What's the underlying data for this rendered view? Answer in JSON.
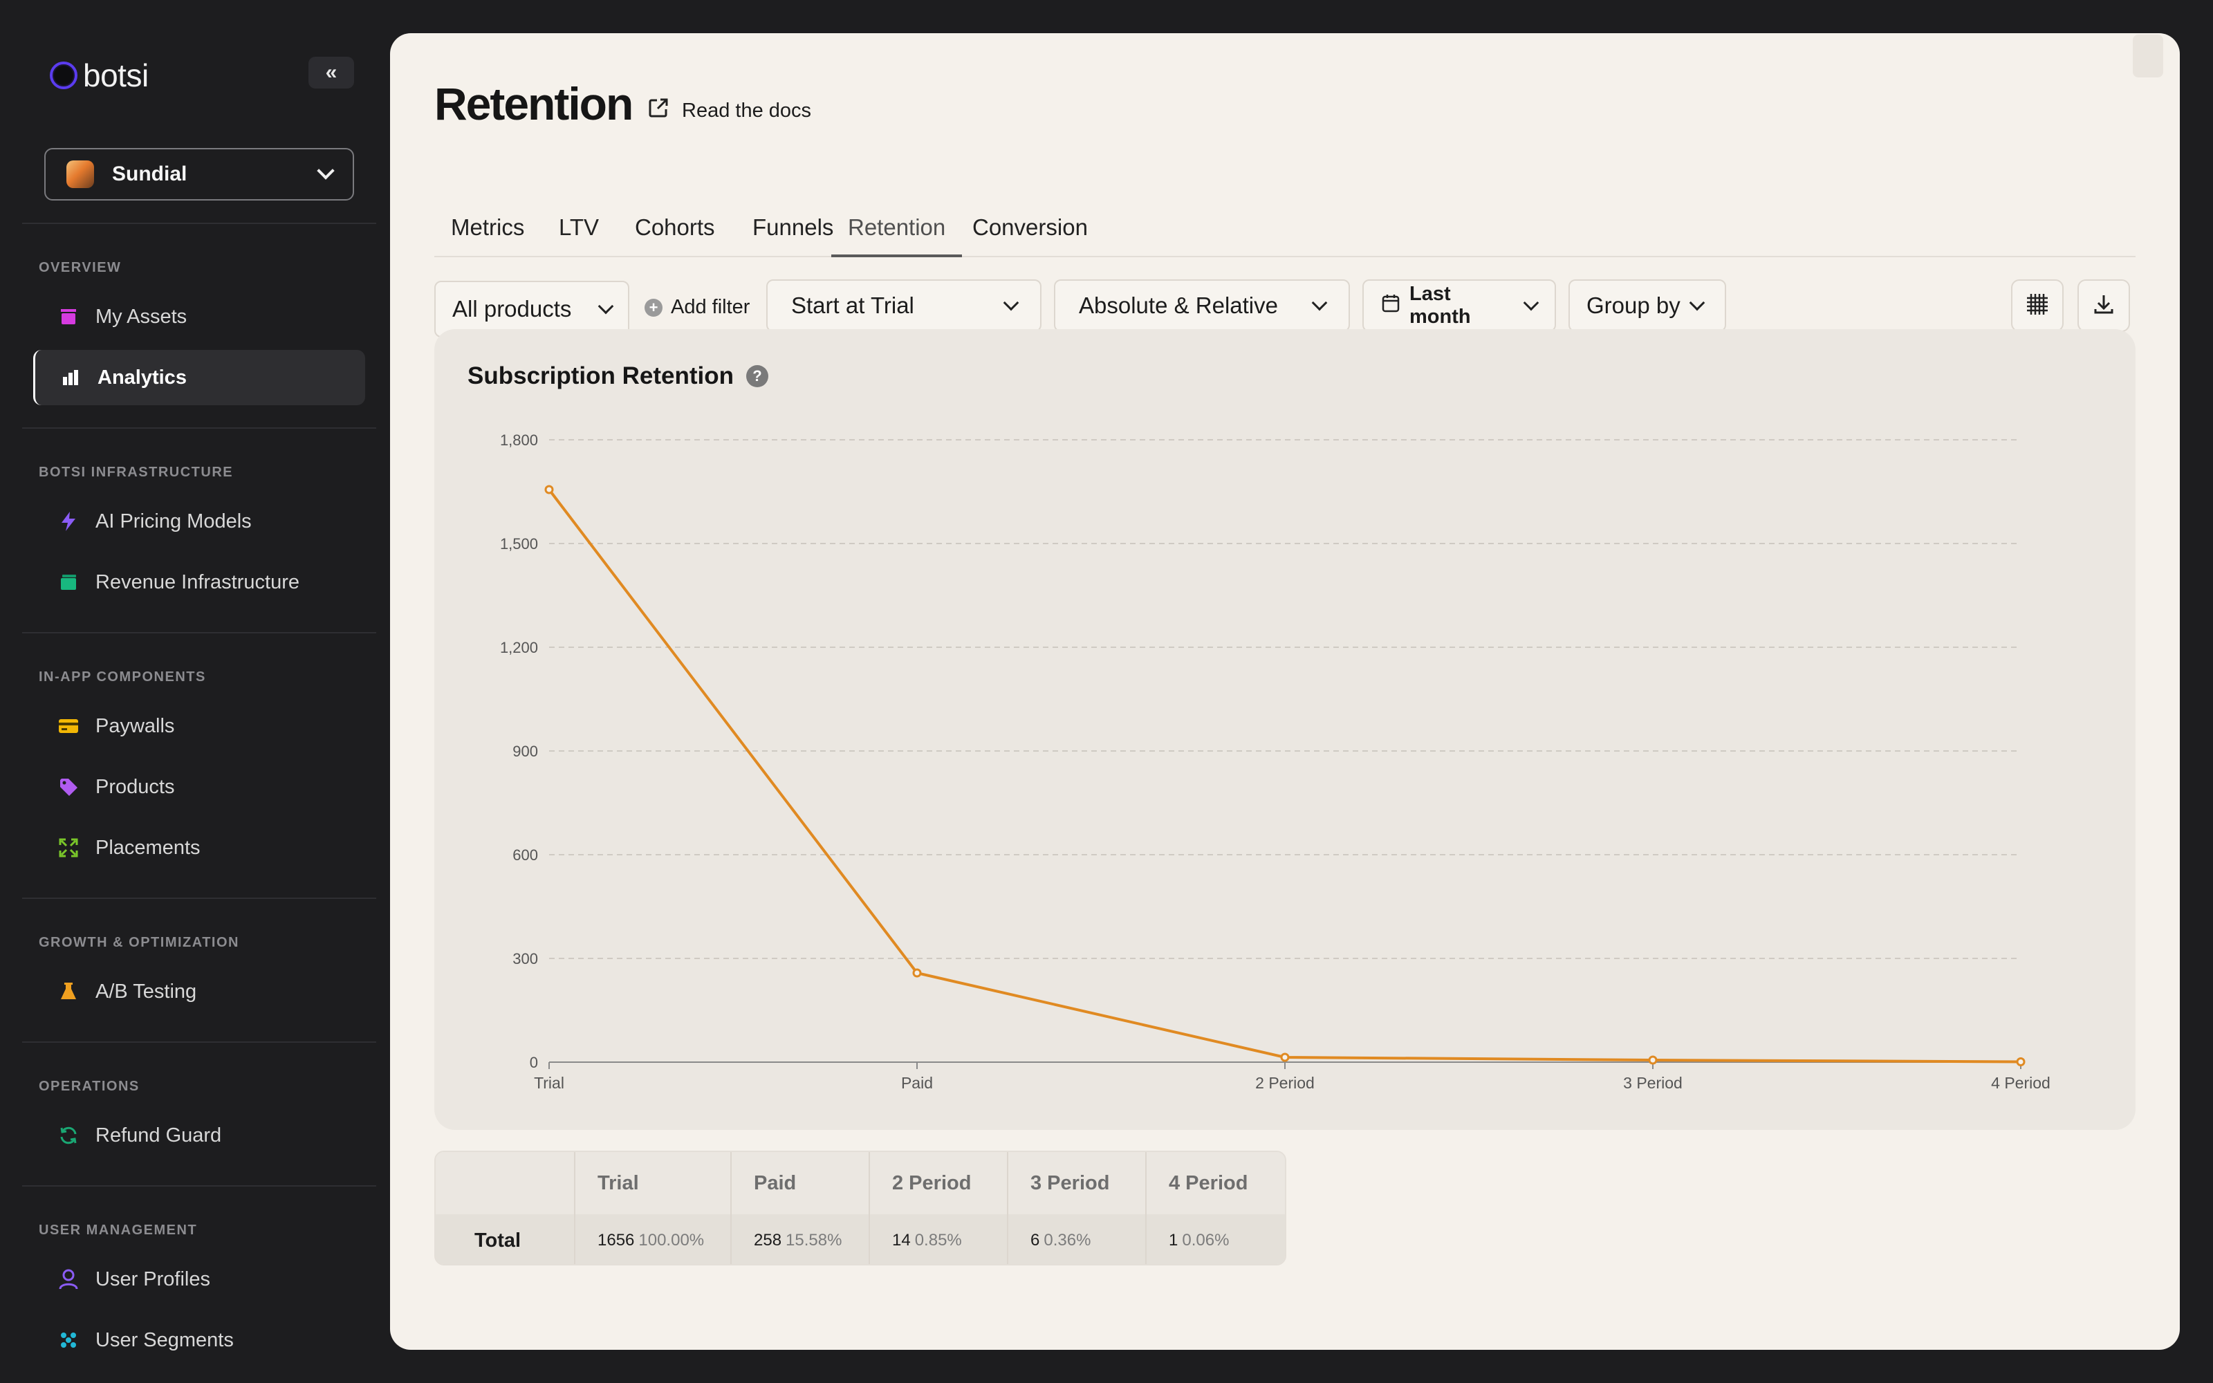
{
  "brand": {
    "name": "botsi"
  },
  "app_selector": {
    "name": "Sundial"
  },
  "sidebar": {
    "sections": [
      {
        "label": "OVERVIEW",
        "items": [
          {
            "label": "My Assets",
            "icon": "assets-icon"
          },
          {
            "label": "Analytics",
            "icon": "bar-chart-icon",
            "active": true
          }
        ]
      },
      {
        "label": "BOTSI INFRASTRUCTURE",
        "items": [
          {
            "label": "AI Pricing Models",
            "icon": "lightning-icon"
          },
          {
            "label": "Revenue Infrastructure",
            "icon": "card-stack-icon"
          }
        ]
      },
      {
        "label": "IN-APP COMPONENTS",
        "items": [
          {
            "label": "Paywalls",
            "icon": "credit-card-icon"
          },
          {
            "label": "Products",
            "icon": "tag-icon"
          },
          {
            "label": "Placements",
            "icon": "expand-icon"
          }
        ]
      },
      {
        "label": "GROWTH & OPTIMIZATION",
        "items": [
          {
            "label": "A/B Testing",
            "icon": "flask-icon"
          }
        ]
      },
      {
        "label": "OPERATIONS",
        "items": [
          {
            "label": "Refund Guard",
            "icon": "refresh-icon"
          }
        ]
      },
      {
        "label": "USER MANAGEMENT",
        "items": [
          {
            "label": "User Profiles",
            "icon": "user-icon"
          },
          {
            "label": "User Segments",
            "icon": "segments-icon"
          }
        ]
      }
    ]
  },
  "header": {
    "title": "Retention",
    "docs_link": "Read the docs"
  },
  "tabs": [
    "Metrics",
    "LTV",
    "Cohorts",
    "Funnels",
    "Retention",
    "Conversion"
  ],
  "active_tab": "Retention",
  "toolbar": {
    "products": "All products",
    "add_filter": "Add filter",
    "start_at": "Start at Trial",
    "mode": "Absolute & Relative",
    "date_range": "Last month",
    "group_by": "Group by"
  },
  "chart_title": "Subscription Retention",
  "colors": {
    "line": "#e08a22",
    "accent_purple": "#5b3cf0"
  },
  "chart_data": {
    "type": "line",
    "title": "Subscription Retention",
    "categories": [
      "Trial",
      "Paid",
      "2 Period",
      "3 Period",
      "4 Period"
    ],
    "series": [
      {
        "values": [
          1656,
          258,
          14,
          6,
          1
        ]
      }
    ],
    "ylim": [
      0,
      1800
    ],
    "yticks": [
      0,
      300,
      600,
      900,
      1200,
      1500,
      1800
    ],
    "ytick_labels": [
      "0",
      "300",
      "600",
      "900",
      "1,200",
      "1,500",
      "1,800"
    ],
    "grid": true
  },
  "table": {
    "columns": [
      "Trial",
      "Paid",
      "2 Period",
      "3 Period",
      "4 Period"
    ],
    "rows": [
      {
        "label": "Total",
        "cells": [
          {
            "value": "1656",
            "pct": "100.00%"
          },
          {
            "value": "258",
            "pct": "15.58%"
          },
          {
            "value": "14",
            "pct": "0.85%"
          },
          {
            "value": "6",
            "pct": "0.36%"
          },
          {
            "value": "1",
            "pct": "0.06%"
          }
        ]
      }
    ]
  }
}
